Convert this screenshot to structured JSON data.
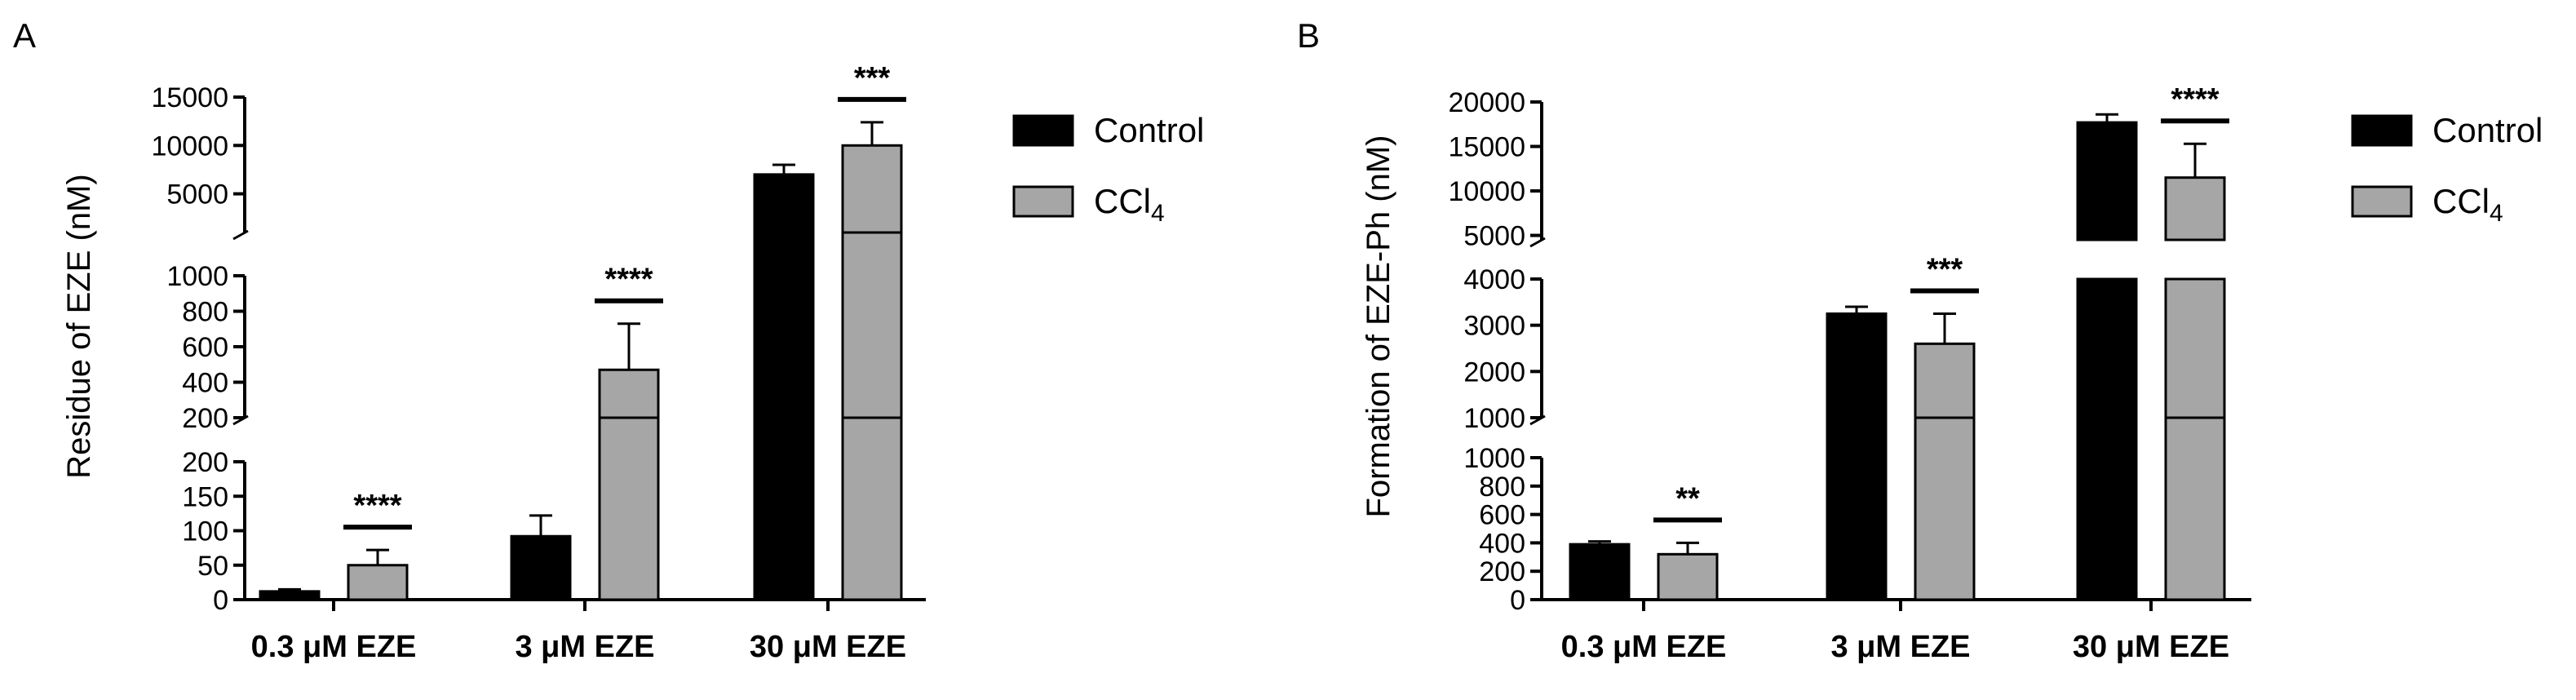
{
  "colors": {
    "control": "#000000",
    "ccl4": "#a6a6a6",
    "axis": "#000000"
  },
  "chart_data": [
    {
      "panel": "A",
      "type": "bar",
      "ylabel": "Residue of EZE (nM)",
      "categories": [
        "0.3 μM EZE",
        "3 μM EZE",
        "30 μM EZE"
      ],
      "series": [
        {
          "name": "Control",
          "values": [
            12,
            92,
            7000
          ],
          "errors": [
            3,
            30,
            1000
          ]
        },
        {
          "name": "CCl",
          "values": [
            50,
            470,
            10000
          ],
          "errors": [
            22,
            260,
            2400
          ]
        }
      ],
      "significance": [
        "****",
        "****",
        "***"
      ],
      "legend": {
        "position": "right",
        "entries": [
          "Control",
          "CCl"
        ],
        "subscript": [
          "",
          "4"
        ]
      },
      "axis_segments": [
        {
          "range": [
            0,
            200
          ],
          "ticks": [
            0,
            50,
            100,
            150,
            200
          ]
        },
        {
          "range": [
            200,
            1000
          ],
          "ticks": [
            200,
            400,
            600,
            800,
            1000
          ]
        },
        {
          "range": [
            1000,
            15000
          ],
          "ticks": [
            5000,
            10000,
            15000
          ]
        }
      ]
    },
    {
      "panel": "B",
      "type": "bar",
      "ylabel": "Formation of EZE-Ph (nM)",
      "categories": [
        "0.3 μM EZE",
        "3 μM EZE",
        "30 μM EZE"
      ],
      "series": [
        {
          "name": "Control",
          "values": [
            390,
            3250,
            17700
          ],
          "errors": [
            20,
            150,
            900
          ]
        },
        {
          "name": "CCl",
          "values": [
            320,
            2600,
            11500
          ],
          "errors": [
            80,
            650,
            3800
          ]
        }
      ],
      "significance": [
        "**",
        "***",
        "****"
      ],
      "legend": {
        "position": "right",
        "entries": [
          "Control",
          "CCl"
        ],
        "subscript": [
          "",
          "4"
        ]
      },
      "axis_segments": [
        {
          "range": [
            0,
            1000
          ],
          "ticks": [
            0,
            200,
            400,
            600,
            800,
            1000
          ]
        },
        {
          "range": [
            1000,
            4000
          ],
          "ticks": [
            1000,
            2000,
            3000,
            4000
          ]
        },
        {
          "range": [
            4500,
            20000
          ],
          "ticks": [
            5000,
            10000,
            15000,
            20000
          ]
        }
      ]
    }
  ]
}
